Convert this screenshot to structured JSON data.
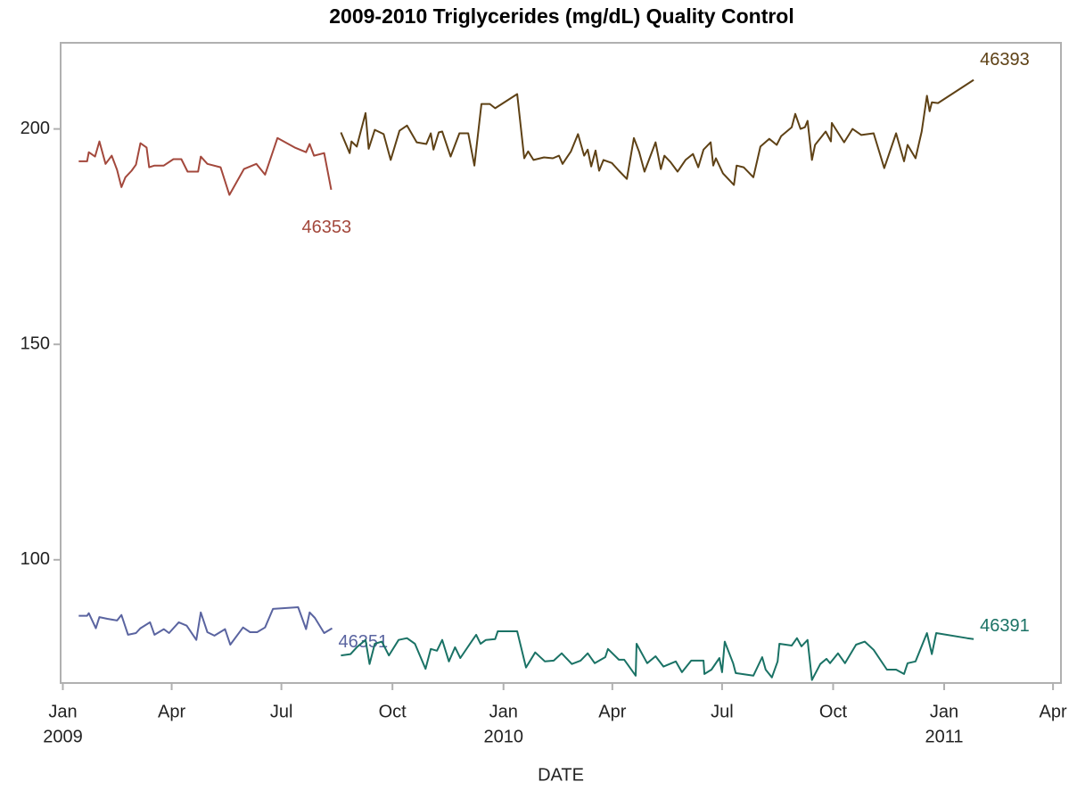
{
  "chart_data": {
    "type": "line",
    "title": "2009-2010 Triglycerides (mg/dL) Quality Control",
    "x_label": "DATE",
    "xlim": [
      2008.995,
      2011.265
    ],
    "ylim": [
      71.4,
      220
    ],
    "xticks": [
      {
        "value": 2009,
        "label": "Jan",
        "year": "2009"
      },
      {
        "value": 2009.247,
        "label": "Apr"
      },
      {
        "value": 2009.496,
        "label": "Jul"
      },
      {
        "value": 2009.748,
        "label": "Oct"
      },
      {
        "value": 2010,
        "label": "Jan",
        "year": "2010"
      },
      {
        "value": 2010.247,
        "label": "Apr"
      },
      {
        "value": 2010.496,
        "label": "Jul"
      },
      {
        "value": 2010.748,
        "label": "Oct"
      },
      {
        "value": 2011,
        "label": "Jan",
        "year": "2011"
      },
      {
        "value": 2011.247,
        "label": "Apr"
      }
    ],
    "yticks": [
      100,
      150,
      200
    ],
    "grid": false,
    "series": [
      {
        "name": "46353",
        "color": "#a3483c",
        "x": [
          2009.036,
          2009.055,
          2009.059,
          2009.073,
          2009.083,
          2009.097,
          2009.111,
          2009.123,
          2009.133,
          2009.142,
          2009.156,
          2009.166,
          2009.176,
          2009.19,
          2009.196,
          2009.208,
          2009.229,
          2009.251,
          2009.269,
          2009.283,
          2009.307,
          2009.313,
          2009.328,
          2009.358,
          2009.378,
          2009.411,
          2009.439,
          2009.459,
          2009.487,
          2009.526,
          2009.552,
          2009.56,
          2009.57,
          2009.593,
          2009.609
        ],
        "values": [
          192.5,
          192.5,
          194.6,
          193.6,
          197.1,
          191.9,
          193.8,
          190.5,
          186.5,
          188.8,
          190.3,
          191.7,
          196.7,
          195.7,
          191.1,
          191.5,
          191.5,
          193.0,
          193.0,
          190.1,
          190.1,
          193.6,
          191.9,
          191.1,
          184.7,
          190.7,
          191.9,
          189.4,
          197.9,
          195.7,
          194.6,
          196.5,
          193.8,
          194.4,
          185.9
        ]
      },
      {
        "name": "46351",
        "color": "#5a64a0",
        "x": [
          2009.036,
          2009.055,
          2009.059,
          2009.075,
          2009.083,
          2009.101,
          2009.123,
          2009.133,
          2009.148,
          2009.166,
          2009.176,
          2009.198,
          2009.208,
          2009.229,
          2009.241,
          2009.263,
          2009.281,
          2009.303,
          2009.313,
          2009.328,
          2009.344,
          2009.368,
          2009.38,
          2009.409,
          2009.425,
          2009.441,
          2009.459,
          2009.477,
          2009.534,
          2009.552,
          2009.56,
          2009.572,
          2009.593,
          2009.611
        ],
        "values": [
          87.0,
          87.0,
          87.6,
          84.1,
          86.7,
          86.3,
          85.9,
          87.2,
          82.6,
          83.0,
          84.1,
          85.5,
          82.6,
          83.9,
          83.0,
          85.5,
          84.7,
          81.4,
          87.8,
          83.2,
          82.4,
          83.9,
          80.3,
          84.3,
          83.2,
          83.2,
          84.3,
          88.6,
          89.0,
          83.9,
          87.8,
          86.5,
          83.0,
          84.1
        ]
      },
      {
        "name": "46393",
        "color": "#5e4115",
        "x": [
          2009.631,
          2009.651,
          2009.655,
          2009.667,
          2009.687,
          2009.694,
          2009.708,
          2009.728,
          2009.744,
          2009.764,
          2009.781,
          2009.803,
          2009.825,
          2009.835,
          2009.841,
          2009.853,
          2009.861,
          2009.88,
          2009.9,
          2009.92,
          2009.934,
          2009.95,
          2009.969,
          2009.981,
          2010.031,
          2010.047,
          2010.056,
          2010.068,
          2010.092,
          2010.112,
          2010.126,
          2010.134,
          2010.153,
          2010.169,
          2010.183,
          2010.191,
          2010.199,
          2010.209,
          2010.217,
          2010.227,
          2010.246,
          2010.262,
          2010.28,
          2010.296,
          2010.308,
          2010.32,
          2010.345,
          2010.357,
          2010.365,
          2010.379,
          2010.395,
          2010.413,
          2010.43,
          2010.442,
          2010.454,
          2010.47,
          2010.476,
          2010.482,
          2010.498,
          2010.523,
          2010.529,
          2010.545,
          2010.567,
          2010.583,
          2010.603,
          2010.62,
          2010.63,
          2010.654,
          2010.662,
          2010.674,
          2010.684,
          2010.69,
          2010.7,
          2010.707,
          2010.731,
          2010.743,
          2010.745,
          2010.773,
          2010.792,
          2010.812,
          2010.84,
          2010.864,
          2010.891,
          2010.909,
          2010.917,
          2010.935,
          2010.949,
          2010.961,
          2010.967,
          2010.972,
          2010.986,
          2011.067
        ],
        "values": [
          199.2,
          194.4,
          197.1,
          195.9,
          203.7,
          195.4,
          199.8,
          198.8,
          192.8,
          199.6,
          200.8,
          196.9,
          196.5,
          199.0,
          195.2,
          199.2,
          199.4,
          193.6,
          199.0,
          199.0,
          191.5,
          205.8,
          205.8,
          204.8,
          208.1,
          193.2,
          194.8,
          192.8,
          193.4,
          193.2,
          193.8,
          191.9,
          194.8,
          198.8,
          193.8,
          195.2,
          191.3,
          195.0,
          190.3,
          192.8,
          192.1,
          190.3,
          188.4,
          197.9,
          194.6,
          190.1,
          196.9,
          190.7,
          193.8,
          192.3,
          190.1,
          192.8,
          194.2,
          191.1,
          195.2,
          196.9,
          191.5,
          193.2,
          189.7,
          187.0,
          191.5,
          191.1,
          188.8,
          195.9,
          197.7,
          196.3,
          198.3,
          200.4,
          203.5,
          200.0,
          200.4,
          201.9,
          192.8,
          196.3,
          199.4,
          197.1,
          201.4,
          196.9,
          200.0,
          198.6,
          199.0,
          190.9,
          199.0,
          192.5,
          196.3,
          193.2,
          199.4,
          207.7,
          204.1,
          206.2,
          206.0,
          211.4
        ]
      },
      {
        "name": "46391",
        "color": "#1a7265",
        "x": [
          2009.631,
          2009.653,
          2009.667,
          2009.687,
          2009.696,
          2009.708,
          2009.724,
          2009.74,
          2009.762,
          2009.781,
          2009.799,
          2009.823,
          2009.835,
          2009.849,
          2009.861,
          2009.876,
          2009.89,
          2009.902,
          2009.93,
          2009.938,
          2009.948,
          2009.96,
          2009.981,
          2009.987,
          2010.031,
          2010.051,
          2010.072,
          2010.094,
          2010.114,
          2010.132,
          2010.155,
          2010.175,
          2010.191,
          2010.207,
          2010.231,
          2010.237,
          2010.262,
          2010.274,
          2010.3,
          2010.302,
          2010.326,
          2010.345,
          2010.363,
          2010.391,
          2010.405,
          2010.426,
          2010.454,
          2010.456,
          2010.472,
          2010.49,
          2010.496,
          2010.502,
          2010.521,
          2010.527,
          2010.567,
          2010.587,
          2010.595,
          2010.609,
          2010.622,
          2010.626,
          2010.654,
          2010.666,
          2010.676,
          2010.69,
          2010.7,
          2010.719,
          2010.733,
          2010.741,
          2010.759,
          2010.775,
          2010.8,
          2010.82,
          2010.84,
          2010.87,
          2010.891,
          2010.909,
          2010.917,
          2010.935,
          2010.961,
          2010.972,
          2010.982,
          2011.052,
          2011.067
        ],
        "values": [
          77.8,
          78.1,
          79.7,
          81.4,
          75.8,
          80.5,
          81.0,
          77.8,
          81.4,
          81.8,
          80.5,
          74.7,
          79.3,
          78.9,
          81.4,
          76.4,
          79.7,
          77.2,
          81.4,
          82.6,
          80.5,
          81.4,
          81.6,
          83.4,
          83.4,
          75.0,
          78.5,
          76.4,
          76.6,
          78.3,
          75.8,
          76.6,
          78.3,
          76.0,
          77.4,
          79.3,
          76.8,
          76.8,
          73.1,
          80.5,
          76.0,
          77.6,
          75.2,
          76.4,
          73.9,
          76.6,
          76.6,
          73.5,
          74.5,
          77.2,
          73.9,
          81.0,
          76.0,
          73.7,
          73.1,
          77.4,
          74.5,
          72.7,
          76.4,
          80.5,
          80.1,
          81.8,
          79.9,
          81.4,
          72.1,
          75.8,
          77.0,
          76.0,
          78.3,
          76.0,
          80.3,
          81.0,
          79.1,
          74.5,
          74.5,
          73.5,
          76.0,
          76.4,
          83.0,
          78.1,
          83.0,
          81.8,
          81.6
        ]
      }
    ]
  }
}
